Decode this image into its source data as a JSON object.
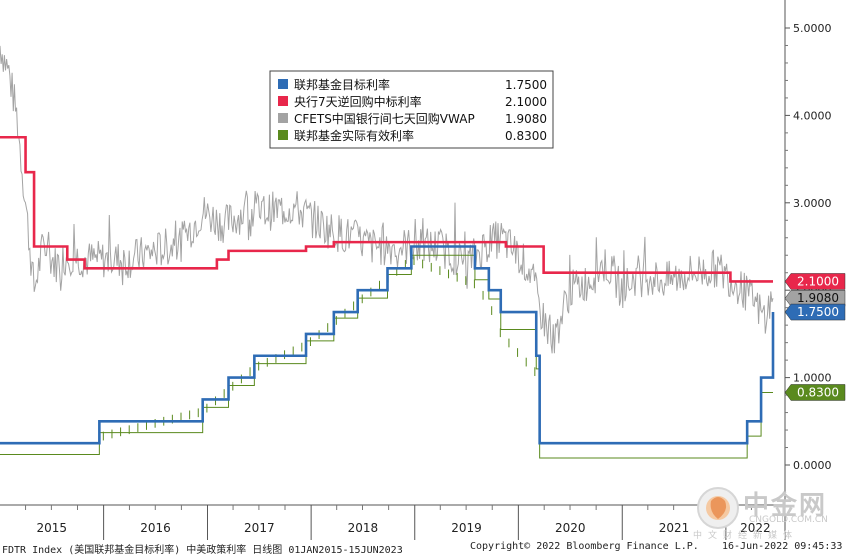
{
  "chart_data": {
    "type": "line",
    "x_range": [
      "2015-01-01",
      "2022-06-16"
    ],
    "x_tick_labels": [
      "2015",
      "2016",
      "2017",
      "2018",
      "2019",
      "2020",
      "2021",
      "2022"
    ],
    "ylim": [
      0,
      5.0
    ],
    "y_ticks": [
      "0.0000",
      "1.0000",
      "2.0000",
      "3.0000",
      "4.0000",
      "5.0000"
    ],
    "legend_position": "top-center",
    "series": [
      {
        "name": "联邦基金目标利率",
        "color": "#2e6cb5",
        "last_value": "1.7500",
        "step": true,
        "points": [
          [
            "2015-01-01",
            0.25
          ],
          [
            "2015-12-17",
            0.5
          ],
          [
            "2016-12-15",
            0.75
          ],
          [
            "2017-03-16",
            1.0
          ],
          [
            "2017-06-15",
            1.25
          ],
          [
            "2017-12-14",
            1.5
          ],
          [
            "2018-03-22",
            1.75
          ],
          [
            "2018-06-14",
            2.0
          ],
          [
            "2018-09-27",
            2.25
          ],
          [
            "2018-12-20",
            2.5
          ],
          [
            "2019-08-01",
            2.25
          ],
          [
            "2019-09-19",
            2.0
          ],
          [
            "2019-10-31",
            1.75
          ],
          [
            "2020-03-04",
            1.25
          ],
          [
            "2020-03-16",
            0.25
          ],
          [
            "2022-03-17",
            0.5
          ],
          [
            "2022-05-05",
            1.0
          ],
          [
            "2022-06-16",
            1.75
          ]
        ]
      },
      {
        "name": "央行7天逆回购中标利率",
        "color": "#e8274b",
        "last_value": "2.1000",
        "step": true,
        "points": [
          [
            "2015-01-01",
            3.75
          ],
          [
            "2015-04-01",
            3.35
          ],
          [
            "2015-05-01",
            2.5
          ],
          [
            "2015-07-01",
            2.5
          ],
          [
            "2015-08-26",
            2.35
          ],
          [
            "2015-10-26",
            2.25
          ],
          [
            "2017-02-03",
            2.35
          ],
          [
            "2017-03-16",
            2.45
          ],
          [
            "2017-12-14",
            2.5
          ],
          [
            "2018-03-22",
            2.55
          ],
          [
            "2019-11-18",
            2.5
          ],
          [
            "2020-03-30",
            2.2
          ],
          [
            "2021-12-20",
            2.2
          ],
          [
            "2022-01-17",
            2.1
          ],
          [
            "2022-06-16",
            2.1
          ]
        ]
      },
      {
        "name": "CFETS中国银行间七天回购VWAP",
        "color": "#a3a3a3",
        "last_value": "1.9080",
        "step": false,
        "points": [
          [
            "2015-01-01",
            4.8
          ],
          [
            "2015-02-01",
            4.5
          ],
          [
            "2015-03-01",
            4.0
          ],
          [
            "2015-04-01",
            3.0
          ],
          [
            "2015-05-01",
            2.0
          ],
          [
            "2015-06-01",
            2.5
          ],
          [
            "2015-07-15",
            2.3
          ],
          [
            "2015-09-01",
            2.4
          ],
          [
            "2015-11-01",
            2.35
          ],
          [
            "2016-01-15",
            2.35
          ],
          [
            "2016-04-01",
            2.35
          ],
          [
            "2016-07-01",
            2.45
          ],
          [
            "2016-10-01",
            2.55
          ],
          [
            "2016-12-15",
            2.9
          ],
          [
            "2017-03-01",
            2.75
          ],
          [
            "2017-05-15",
            2.9
          ],
          [
            "2017-08-01",
            2.9
          ],
          [
            "2017-11-01",
            2.95
          ],
          [
            "2018-01-15",
            2.8
          ],
          [
            "2018-03-01",
            2.7
          ],
          [
            "2018-06-01",
            2.6
          ],
          [
            "2018-08-01",
            2.5
          ],
          [
            "2018-11-01",
            2.5
          ],
          [
            "2019-01-15",
            2.5
          ],
          [
            "2019-04-01",
            2.5
          ],
          [
            "2019-07-01",
            2.3
          ],
          [
            "2019-09-01",
            2.5
          ],
          [
            "2019-11-01",
            2.6
          ],
          [
            "2020-01-01",
            2.4
          ],
          [
            "2020-02-15",
            2.2
          ],
          [
            "2020-03-15",
            1.8
          ],
          [
            "2020-05-01",
            1.4
          ],
          [
            "2020-07-01",
            2.0
          ],
          [
            "2020-09-01",
            2.1
          ],
          [
            "2020-11-01",
            2.3
          ],
          [
            "2021-01-01",
            2.0
          ],
          [
            "2021-03-01",
            2.2
          ],
          [
            "2021-06-01",
            2.1
          ],
          [
            "2021-09-01",
            2.2
          ],
          [
            "2021-12-01",
            2.25
          ],
          [
            "2022-02-01",
            2.1
          ],
          [
            "2022-04-01",
            1.9
          ],
          [
            "2022-05-15",
            1.7
          ],
          [
            "2022-06-16",
            1.908
          ]
        ]
      },
      {
        "name": "联邦基金实际有效利率",
        "color": "#5a8a1e",
        "last_value": "0.8300",
        "step": true,
        "points": [
          [
            "2015-01-01",
            0.12
          ],
          [
            "2015-12-17",
            0.37
          ],
          [
            "2016-12-15",
            0.66
          ],
          [
            "2017-03-16",
            0.91
          ],
          [
            "2017-06-15",
            1.16
          ],
          [
            "2017-12-14",
            1.42
          ],
          [
            "2018-03-22",
            1.68
          ],
          [
            "2018-06-14",
            1.91
          ],
          [
            "2018-09-27",
            2.18
          ],
          [
            "2018-12-20",
            2.4
          ],
          [
            "2019-08-01",
            2.12
          ],
          [
            "2019-09-19",
            1.9
          ],
          [
            "2019-10-31",
            1.55
          ],
          [
            "2020-03-04",
            1.1
          ],
          [
            "2020-03-16",
            0.08
          ],
          [
            "2022-03-17",
            0.33
          ],
          [
            "2022-05-05",
            0.83
          ],
          [
            "2022-06-16",
            0.83
          ]
        ]
      }
    ]
  },
  "footer": {
    "left": "FDTR Index (美国联邦基金目标利率) 中美政策利率   日线图 01JAN2015-15JUN2023",
    "center": "Copyright© 2022 Bloomberg Finance L.P.",
    "right": "16-Jun-2022 09:45:33"
  },
  "watermark": {
    "brand": "中金网",
    "url": "CNGOLD.COM.CN",
    "tagline": "中文财经新媒体"
  }
}
